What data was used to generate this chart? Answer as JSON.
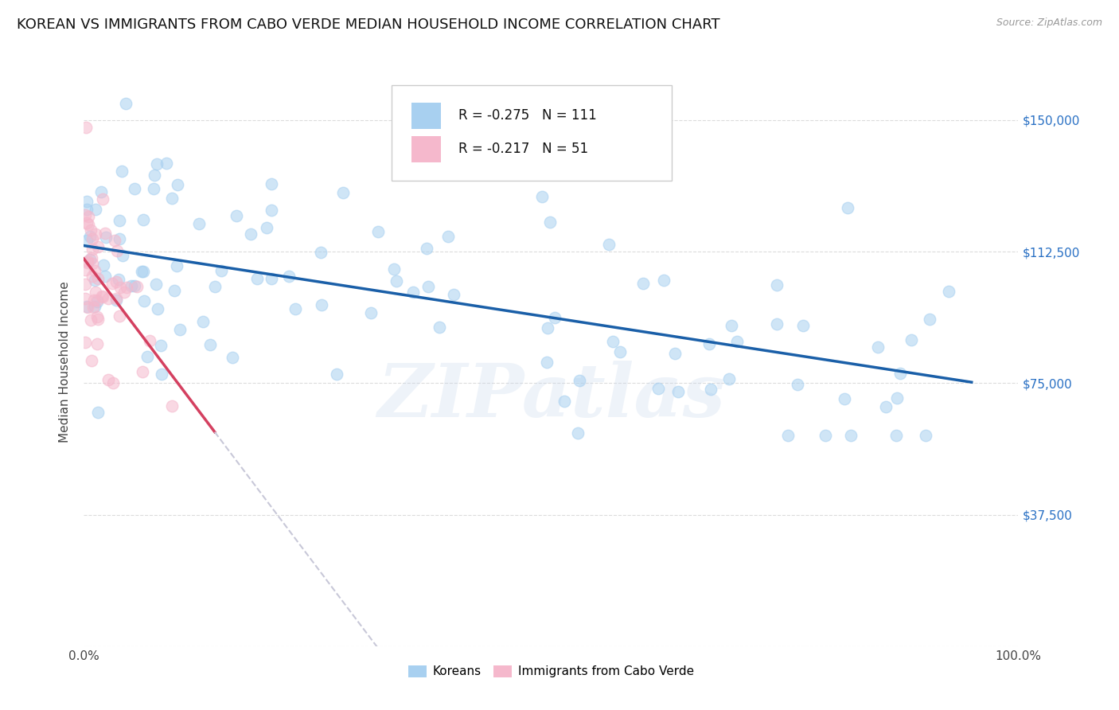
{
  "title": "KOREAN VS IMMIGRANTS FROM CABO VERDE MEDIAN HOUSEHOLD INCOME CORRELATION CHART",
  "source": "Source: ZipAtlas.com",
  "ylabel": "Median Household Income",
  "xlim": [
    0,
    100
  ],
  "ylim": [
    0,
    162000
  ],
  "yticks": [
    0,
    37500,
    75000,
    112500,
    150000
  ],
  "ytick_labels": [
    "",
    "$37,500",
    "$75,000",
    "$112,500",
    "$150,000"
  ],
  "korean_R": -0.275,
  "korean_N": 111,
  "caboverde_R": -0.217,
  "caboverde_N": 51,
  "korean_color": "#a8d0f0",
  "caboverde_color": "#f5b8cc",
  "korean_line_color": "#1a5fa8",
  "caboverde_line_color": "#d44060",
  "caboverde_dash_color": "#c8c8d8",
  "background_color": "#ffffff",
  "grid_color": "#dcdcdc",
  "watermark": "ZIPatlas",
  "title_fontsize": 13,
  "label_fontsize": 11,
  "tick_fontsize": 11,
  "legend_fontsize": 12,
  "dot_size": 110,
  "dot_alpha": 0.55,
  "line_width": 2.5
}
